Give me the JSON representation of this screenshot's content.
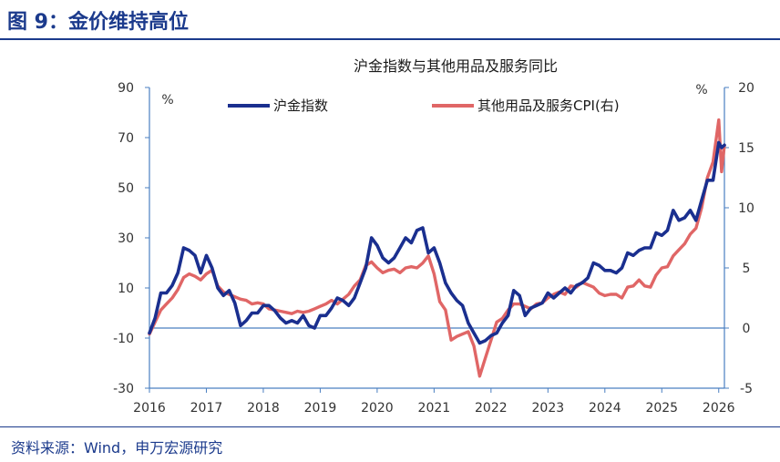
{
  "header": {
    "title": "图 9：金价维持高位"
  },
  "footer": {
    "source": "资料来源：Wind，申万宏源研究"
  },
  "colors": {
    "accent": "#1b3a8c",
    "gold_series": "#1a2f8f",
    "cpi_series": "#e06666",
    "axis": "#4a7fc1"
  },
  "chart_data": {
    "type": "line",
    "title": "沪金指数与其他用品及服务同比",
    "x_tick_labels": [
      "2016",
      "2017",
      "2018",
      "2019",
      "2020",
      "2021",
      "2022",
      "2023",
      "2024",
      "2025",
      "2026"
    ],
    "x_range": [
      2016.0,
      2026.1
    ],
    "left_axis": {
      "unit": "%",
      "range": [
        -30,
        90
      ],
      "ticks": [
        90,
        70,
        50,
        30,
        10,
        -10,
        -30
      ]
    },
    "right_axis": {
      "unit": "%",
      "range": [
        -5,
        20
      ],
      "ticks": [
        20,
        15,
        10,
        5,
        0,
        -5
      ]
    },
    "series": [
      {
        "name": "沪金指数",
        "axis": "left",
        "points": [
          [
            2016.0,
            -8
          ],
          [
            2016.1,
            -2
          ],
          [
            2016.2,
            8
          ],
          [
            2016.3,
            8
          ],
          [
            2016.4,
            11
          ],
          [
            2016.5,
            16
          ],
          [
            2016.6,
            26
          ],
          [
            2016.7,
            25
          ],
          [
            2016.8,
            23
          ],
          [
            2016.9,
            16
          ],
          [
            2017.0,
            23
          ],
          [
            2017.1,
            18
          ],
          [
            2017.2,
            10
          ],
          [
            2017.3,
            7
          ],
          [
            2017.4,
            9
          ],
          [
            2017.5,
            4
          ],
          [
            2017.6,
            -5
          ],
          [
            2017.7,
            -3
          ],
          [
            2017.8,
            0
          ],
          [
            2017.9,
            0
          ],
          [
            2018.0,
            3
          ],
          [
            2018.1,
            3
          ],
          [
            2018.2,
            1
          ],
          [
            2018.3,
            -2
          ],
          [
            2018.4,
            -4
          ],
          [
            2018.5,
            -3
          ],
          [
            2018.6,
            -4
          ],
          [
            2018.7,
            -1
          ],
          [
            2018.8,
            -5
          ],
          [
            2018.9,
            -6
          ],
          [
            2019.0,
            -1
          ],
          [
            2019.1,
            -1
          ],
          [
            2019.2,
            2
          ],
          [
            2019.3,
            6
          ],
          [
            2019.4,
            5
          ],
          [
            2019.5,
            3
          ],
          [
            2019.6,
            6
          ],
          [
            2019.7,
            12
          ],
          [
            2019.8,
            18
          ],
          [
            2019.9,
            30
          ],
          [
            2020.0,
            27
          ],
          [
            2020.1,
            22
          ],
          [
            2020.2,
            20
          ],
          [
            2020.3,
            22
          ],
          [
            2020.4,
            26
          ],
          [
            2020.5,
            30
          ],
          [
            2020.6,
            28
          ],
          [
            2020.7,
            33
          ],
          [
            2020.8,
            34
          ],
          [
            2020.9,
            24
          ],
          [
            2021.0,
            26
          ],
          [
            2021.1,
            20
          ],
          [
            2021.2,
            12
          ],
          [
            2021.3,
            8
          ],
          [
            2021.4,
            5
          ],
          [
            2021.5,
            3
          ],
          [
            2021.6,
            -4
          ],
          [
            2021.7,
            -8
          ],
          [
            2021.8,
            -12
          ],
          [
            2021.9,
            -11
          ],
          [
            2022.0,
            -9
          ],
          [
            2022.1,
            -8
          ],
          [
            2022.2,
            -4
          ],
          [
            2022.3,
            -1
          ],
          [
            2022.4,
            9
          ],
          [
            2022.5,
            7
          ],
          [
            2022.6,
            -1
          ],
          [
            2022.7,
            2
          ],
          [
            2022.8,
            3
          ],
          [
            2022.9,
            4
          ],
          [
            2023.0,
            8
          ],
          [
            2023.1,
            6
          ],
          [
            2023.2,
            8
          ],
          [
            2023.3,
            10
          ],
          [
            2023.4,
            8
          ],
          [
            2023.5,
            11
          ],
          [
            2023.6,
            12
          ],
          [
            2023.7,
            14
          ],
          [
            2023.8,
            20
          ],
          [
            2023.9,
            19
          ],
          [
            2024.0,
            17
          ],
          [
            2024.1,
            17
          ],
          [
            2024.2,
            16
          ],
          [
            2024.3,
            18
          ],
          [
            2024.4,
            24
          ],
          [
            2024.5,
            23
          ],
          [
            2024.6,
            25
          ],
          [
            2024.7,
            26
          ],
          [
            2024.8,
            26
          ],
          [
            2024.9,
            32
          ],
          [
            2025.0,
            31
          ],
          [
            2025.1,
            33
          ],
          [
            2025.2,
            41
          ],
          [
            2025.3,
            37
          ],
          [
            2025.4,
            38
          ],
          [
            2025.5,
            41
          ],
          [
            2025.6,
            37
          ],
          [
            2025.7,
            45
          ],
          [
            2025.8,
            53
          ],
          [
            2025.9,
            53
          ],
          [
            2026.0,
            68
          ],
          [
            2026.05,
            66
          ],
          [
            2026.1,
            67
          ]
        ]
      },
      {
        "name": "其他用品及服务CPI(右)",
        "axis": "right",
        "points": [
          [
            2016.0,
            -0.5
          ],
          [
            2016.1,
            0.5
          ],
          [
            2016.2,
            1.5
          ],
          [
            2016.3,
            2.0
          ],
          [
            2016.4,
            2.5
          ],
          [
            2016.5,
            3.2
          ],
          [
            2016.6,
            4.2
          ],
          [
            2016.7,
            4.5
          ],
          [
            2016.8,
            4.3
          ],
          [
            2016.9,
            4.0
          ],
          [
            2017.0,
            4.5
          ],
          [
            2017.1,
            4.8
          ],
          [
            2017.2,
            3.5
          ],
          [
            2017.3,
            3.0
          ],
          [
            2017.4,
            2.8
          ],
          [
            2017.5,
            2.6
          ],
          [
            2017.6,
            2.4
          ],
          [
            2017.7,
            2.3
          ],
          [
            2017.8,
            2.0
          ],
          [
            2017.9,
            2.1
          ],
          [
            2018.0,
            2.0
          ],
          [
            2018.1,
            1.6
          ],
          [
            2018.2,
            1.5
          ],
          [
            2018.3,
            1.4
          ],
          [
            2018.4,
            1.3
          ],
          [
            2018.5,
            1.2
          ],
          [
            2018.6,
            1.4
          ],
          [
            2018.7,
            1.3
          ],
          [
            2018.8,
            1.4
          ],
          [
            2018.9,
            1.6
          ],
          [
            2019.0,
            1.8
          ],
          [
            2019.1,
            2.0
          ],
          [
            2019.2,
            2.3
          ],
          [
            2019.3,
            2.0
          ],
          [
            2019.4,
            2.4
          ],
          [
            2019.5,
            2.8
          ],
          [
            2019.6,
            3.5
          ],
          [
            2019.7,
            4.0
          ],
          [
            2019.8,
            5.2
          ],
          [
            2019.9,
            5.5
          ],
          [
            2020.0,
            5.0
          ],
          [
            2020.1,
            4.6
          ],
          [
            2020.2,
            4.8
          ],
          [
            2020.3,
            4.9
          ],
          [
            2020.4,
            4.6
          ],
          [
            2020.5,
            5.0
          ],
          [
            2020.6,
            5.1
          ],
          [
            2020.7,
            5.0
          ],
          [
            2020.8,
            5.4
          ],
          [
            2020.9,
            6.0
          ],
          [
            2021.0,
            4.5
          ],
          [
            2021.1,
            2.2
          ],
          [
            2021.2,
            1.5
          ],
          [
            2021.3,
            -1.0
          ],
          [
            2021.4,
            -0.7
          ],
          [
            2021.5,
            -0.5
          ],
          [
            2021.6,
            -0.3
          ],
          [
            2021.7,
            -1.5
          ],
          [
            2021.8,
            -4.0
          ],
          [
            2021.9,
            -2.5
          ],
          [
            2022.0,
            -1.0
          ],
          [
            2022.1,
            0.5
          ],
          [
            2022.2,
            0.8
          ],
          [
            2022.3,
            1.5
          ],
          [
            2022.4,
            2.0
          ],
          [
            2022.5,
            2.0
          ],
          [
            2022.6,
            1.8
          ],
          [
            2022.7,
            1.6
          ],
          [
            2022.8,
            2.0
          ],
          [
            2022.9,
            2.1
          ],
          [
            2023.0,
            2.5
          ],
          [
            2023.1,
            2.8
          ],
          [
            2023.2,
            3.0
          ],
          [
            2023.3,
            2.8
          ],
          [
            2023.4,
            3.5
          ],
          [
            2023.5,
            3.4
          ],
          [
            2023.6,
            3.8
          ],
          [
            2023.7,
            3.6
          ],
          [
            2023.8,
            3.4
          ],
          [
            2023.9,
            2.9
          ],
          [
            2024.0,
            2.7
          ],
          [
            2024.1,
            2.8
          ],
          [
            2024.2,
            2.8
          ],
          [
            2024.3,
            2.5
          ],
          [
            2024.4,
            3.4
          ],
          [
            2024.5,
            3.5
          ],
          [
            2024.6,
            4.0
          ],
          [
            2024.7,
            3.5
          ],
          [
            2024.8,
            3.4
          ],
          [
            2024.9,
            4.4
          ],
          [
            2025.0,
            5.0
          ],
          [
            2025.1,
            5.1
          ],
          [
            2025.2,
            6.0
          ],
          [
            2025.3,
            6.5
          ],
          [
            2025.4,
            7.0
          ],
          [
            2025.5,
            7.8
          ],
          [
            2025.6,
            8.3
          ],
          [
            2025.7,
            10.0
          ],
          [
            2025.8,
            12.5
          ],
          [
            2025.9,
            13.8
          ],
          [
            2026.0,
            17.3
          ],
          [
            2026.05,
            13.0
          ],
          [
            2026.1,
            15.2
          ]
        ]
      }
    ]
  }
}
